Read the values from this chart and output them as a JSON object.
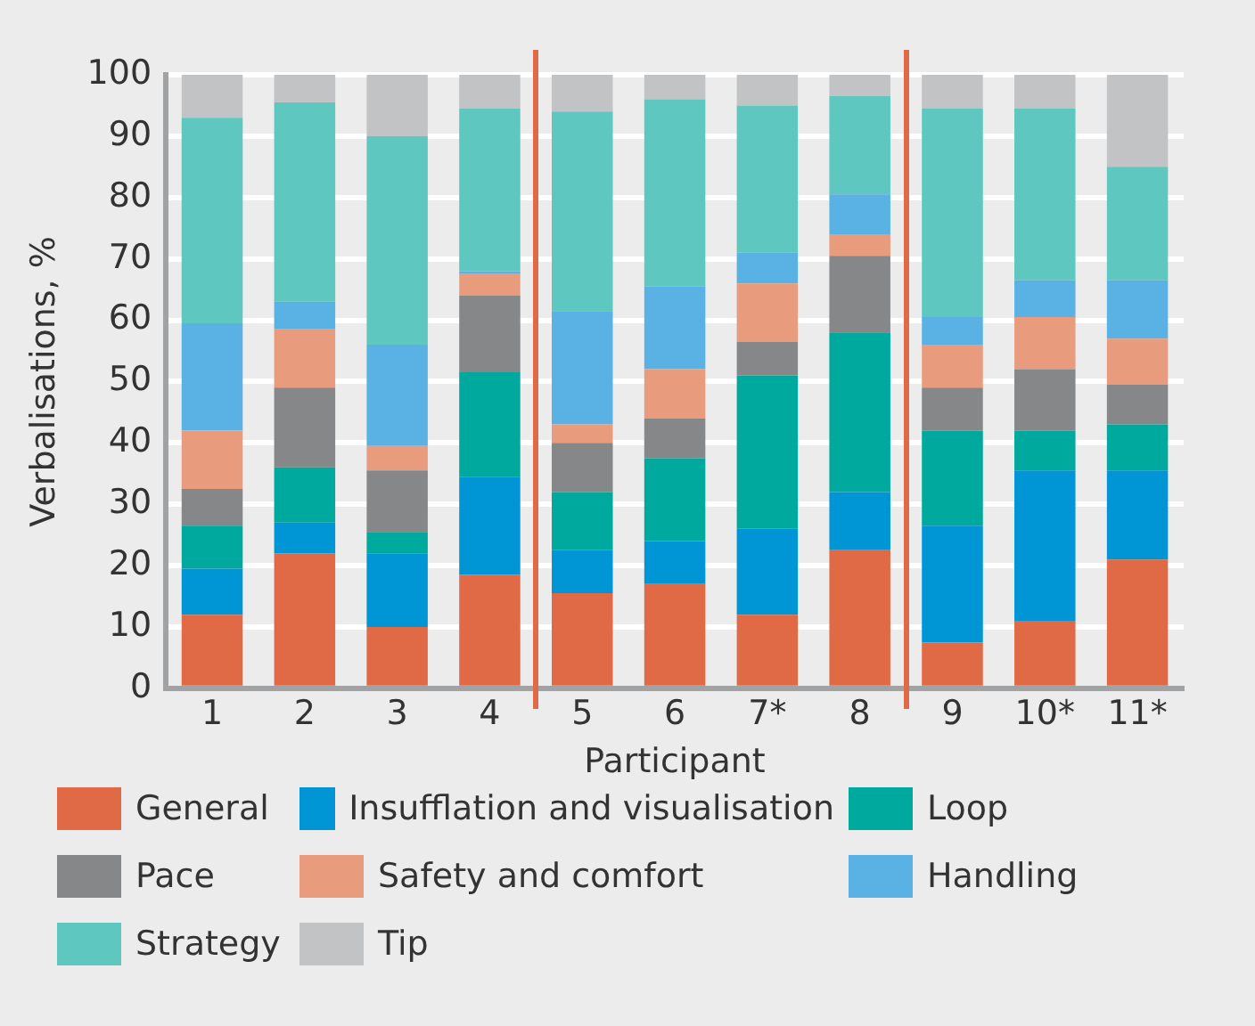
{
  "chart_data": {
    "type": "bar",
    "stacked": true,
    "xlabel": "Participant",
    "ylabel": "Verbalisations, %",
    "categories": [
      "1",
      "2",
      "3",
      "4",
      "5",
      "6",
      "7*",
      "8",
      "9",
      "10*",
      "11*"
    ],
    "ylim": [
      0,
      100
    ],
    "yticks": [
      0,
      10,
      20,
      30,
      40,
      50,
      60,
      70,
      80,
      90,
      100
    ],
    "grid": "y",
    "legend": "bottom",
    "series": [
      {
        "name": "General",
        "color": "#e06a45",
        "values": [
          12,
          22,
          10,
          18.5,
          15.5,
          17,
          12,
          22.5,
          7.5,
          11,
          21
        ]
      },
      {
        "name": "Insufflation and visualisation",
        "color": "#0096d6",
        "values": [
          7.5,
          5,
          12,
          16,
          7,
          7,
          14,
          9.5,
          19,
          24.5,
          14.5
        ]
      },
      {
        "name": "Loop",
        "color": "#00a99d",
        "values": [
          7,
          9,
          3.5,
          17,
          9.5,
          13.5,
          25,
          26,
          15.5,
          6.5,
          7.5
        ]
      },
      {
        "name": "Pace",
        "color": "#858789",
        "values": [
          6,
          13,
          10,
          12.5,
          8,
          6.5,
          5.5,
          12.5,
          7,
          10,
          6.5
        ]
      },
      {
        "name": "Safety and comfort",
        "color": "#e99c7d",
        "values": [
          9.5,
          9.5,
          4,
          3.5,
          3,
          8,
          9.5,
          3.5,
          7,
          8.5,
          7.5
        ]
      },
      {
        "name": "Handling",
        "color": "#5ab2e4",
        "values": [
          17.5,
          4.5,
          16.5,
          0.5,
          18.5,
          13.5,
          5,
          6.5,
          4.5,
          6,
          9.5
        ]
      },
      {
        "name": "Strategy",
        "color": "#5ec7c0",
        "values": [
          33.5,
          32.5,
          34,
          26.5,
          32.5,
          30.5,
          24,
          16,
          34,
          28,
          18.5
        ]
      },
      {
        "name": "Tip",
        "color": "#c2c3c5",
        "values": [
          7,
          4.5,
          10,
          5.5,
          6,
          4,
          5,
          3.5,
          5.5,
          5.5,
          15
        ]
      }
    ]
  }
}
